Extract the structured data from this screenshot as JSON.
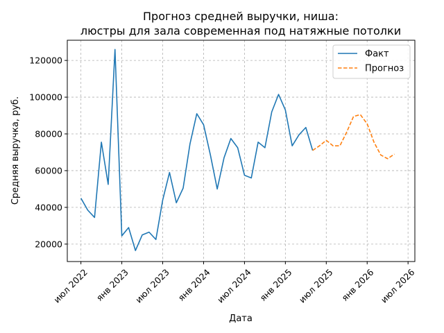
{
  "chart_data": {
    "type": "line",
    "title_line1": "Прогноз средней выручки, ниша:",
    "title_line2": "люстры для зала современная под натяжные потолки",
    "xlabel": "Дата",
    "ylabel": "Средняя выручка, руб.",
    "x_ticks": [
      "2022-07",
      "2023-01",
      "2023-07",
      "2024-01",
      "2024-07",
      "2025-01",
      "2025-07",
      "2026-01",
      "2026-07"
    ],
    "x_tick_labels": [
      "июл 2022",
      "янв 2023",
      "июл 2023",
      "янв 2024",
      "июл 2024",
      "янв 2025",
      "июл 2025",
      "янв 2026",
      "июл 2026"
    ],
    "xlim": [
      "2022-05",
      "2026-08"
    ],
    "y_ticks": [
      20000,
      40000,
      60000,
      80000,
      100000,
      120000
    ],
    "y_tick_labels": [
      "20000",
      "40000",
      "60000",
      "80000",
      "100000",
      "120000"
    ],
    "ylim": [
      10500,
      131000
    ],
    "grid": true,
    "legend_position": "top-right",
    "series": [
      {
        "name": "Факт",
        "color": "#1f77b4",
        "style": "solid",
        "points": [
          [
            "2022-07",
            45000
          ],
          [
            "2022-08",
            38500
          ],
          [
            "2022-09",
            34500
          ],
          [
            "2022-10",
            75500
          ],
          [
            "2022-11",
            52500
          ],
          [
            "2022-12",
            126000
          ],
          [
            "2023-01",
            24500
          ],
          [
            "2023-02",
            29000
          ],
          [
            "2023-03",
            16500
          ],
          [
            "2023-04",
            25000
          ],
          [
            "2023-05",
            26500
          ],
          [
            "2023-06",
            22500
          ],
          [
            "2023-07",
            44000
          ],
          [
            "2023-08",
            59000
          ],
          [
            "2023-09",
            42500
          ],
          [
            "2023-10",
            50500
          ],
          [
            "2023-11",
            74500
          ],
          [
            "2023-12",
            91000
          ],
          [
            "2024-01",
            85000
          ],
          [
            "2024-02",
            68500
          ],
          [
            "2024-03",
            50000
          ],
          [
            "2024-04",
            67000
          ],
          [
            "2024-05",
            77500
          ],
          [
            "2024-06",
            72500
          ],
          [
            "2024-07",
            57500
          ],
          [
            "2024-08",
            56000
          ],
          [
            "2024-09",
            75500
          ],
          [
            "2024-10",
            72500
          ],
          [
            "2024-11",
            92000
          ],
          [
            "2024-12",
            101500
          ],
          [
            "2025-01",
            93000
          ],
          [
            "2025-02",
            73500
          ],
          [
            "2025-03",
            79500
          ],
          [
            "2025-04",
            83500
          ],
          [
            "2025-05",
            71000
          ]
        ]
      },
      {
        "name": "Прогноз",
        "color": "#ff7f0e",
        "style": "dashed",
        "points": [
          [
            "2025-05",
            71000
          ],
          [
            "2025-06",
            73500
          ],
          [
            "2025-07",
            76500
          ],
          [
            "2025-08",
            73500
          ],
          [
            "2025-09",
            73500
          ],
          [
            "2025-10",
            81000
          ],
          [
            "2025-11",
            89500
          ],
          [
            "2025-12",
            90500
          ],
          [
            "2026-01",
            85500
          ],
          [
            "2026-02",
            75500
          ],
          [
            "2026-03",
            68500
          ],
          [
            "2026-04",
            66500
          ],
          [
            "2026-05",
            69000
          ]
        ]
      }
    ]
  }
}
